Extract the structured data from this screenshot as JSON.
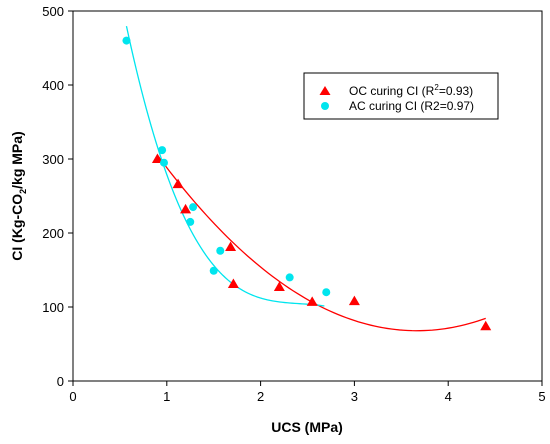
{
  "chart_data": {
    "type": "scatter",
    "xlabel": "UCS (MPa)",
    "ylabel": {
      "prefix": "CI (Kg-CO",
      "subscript": "2",
      "suffix": "/kg MPa)"
    },
    "xlim": [
      0,
      5
    ],
    "ylim": [
      0,
      500
    ],
    "xticks": [
      "0",
      "1",
      "2",
      "3",
      "4",
      "5"
    ],
    "yticks": [
      "0",
      "100",
      "200",
      "300",
      "400",
      "500"
    ],
    "legend_position": "top-right",
    "series": [
      {
        "name": "OC curing CI (R2=0.93)",
        "legend_parts": {
          "before": "OC curing CI (R",
          "superscript": "2",
          "after": "=0.93)"
        },
        "marker": "triangle",
        "color": "#ff0000",
        "x": [
          0.9,
          1.12,
          1.2,
          1.68,
          1.71,
          2.2,
          2.55,
          3.0,
          4.4
        ],
        "y": [
          300,
          266,
          232,
          181,
          131,
          127,
          107,
          108,
          74
        ],
        "fit": {
          "type": "quadratic",
          "x_range": [
            0.9,
            4.4
          ],
          "coefficients": [
            484.6,
            -227.3,
            31.0
          ]
        }
      },
      {
        "name": "AC curing CI (R2=0.97)",
        "legend_parts": {
          "before": "AC curing CI (R2=0.97)",
          "superscript": "",
          "after": ""
        },
        "marker": "circle",
        "color": "#00e5ee",
        "x": [
          0.57,
          0.95,
          0.97,
          1.25,
          1.28,
          1.5,
          1.57,
          2.31,
          2.7
        ],
        "y": [
          460,
          312,
          295,
          215,
          235,
          149,
          176,
          140,
          120
        ],
        "fit": {
          "type": "cubic",
          "x_range": [
            0.57,
            2.68
          ],
          "coefficients": [
            929.9,
            -1006.7,
            412.5,
            -56.8
          ]
        }
      }
    ]
  }
}
